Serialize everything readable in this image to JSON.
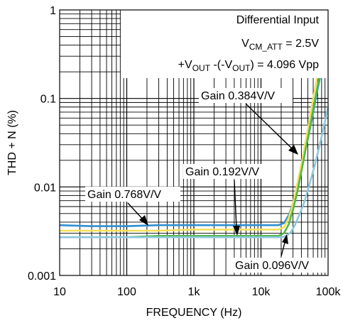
{
  "chart_data": {
    "type": "line",
    "xscale": "log",
    "yscale": "log",
    "xlim": [
      10,
      100000
    ],
    "ylim": [
      0.001,
      1
    ],
    "xlabel": "FREQUENCY (Hz)",
    "ylabel": "THD + N (%)",
    "x_ticks": [
      "10",
      "100",
      "1k",
      "10k",
      "100k"
    ],
    "y_ticks": [
      "0.001",
      "0.01",
      "0.1",
      "1"
    ],
    "grid": true,
    "series": [
      {
        "name": "Gain 0.768V/V",
        "color": "#2e8fd0",
        "x": [
          10,
          30,
          100,
          300,
          1000,
          3000,
          10000,
          18000,
          22000,
          26000,
          30000,
          35000,
          40000,
          50000,
          60000,
          70000,
          80000,
          100000
        ],
        "y": [
          0.0037,
          0.0036,
          0.0036,
          0.0037,
          0.0037,
          0.0037,
          0.0037,
          0.0037,
          0.0039,
          0.0048,
          0.0065,
          0.01,
          0.016,
          0.035,
          0.07,
          0.13,
          0.21,
          0.46
        ]
      },
      {
        "name": "Gain 0.384V/V",
        "color": "#f4e05a",
        "x": [
          10,
          30,
          100,
          300,
          1000,
          3000,
          10000,
          18000,
          22000,
          26000,
          30000,
          35000,
          40000,
          50000,
          60000,
          70000,
          80000,
          100000
        ],
        "y": [
          0.0032,
          0.0032,
          0.0032,
          0.0032,
          0.0033,
          0.0033,
          0.0033,
          0.0033,
          0.0035,
          0.0045,
          0.0065,
          0.011,
          0.018,
          0.045,
          0.1,
          0.19,
          0.32,
          0.75
        ]
      },
      {
        "name": "Gain 0.192V/V",
        "color": "#50b848",
        "x": [
          10,
          30,
          100,
          300,
          1000,
          3000,
          10000,
          18000,
          22000,
          26000,
          30000,
          35000,
          40000,
          50000,
          60000,
          70000,
          80000,
          100000
        ],
        "y": [
          0.0027,
          0.0027,
          0.0027,
          0.0028,
          0.0028,
          0.0028,
          0.0028,
          0.0028,
          0.003,
          0.0038,
          0.0055,
          0.009,
          0.015,
          0.036,
          0.075,
          0.14,
          0.24,
          0.55
        ]
      },
      {
        "name": "Gain 0.096V/V",
        "color": "#8ec8df",
        "x": [
          10,
          30,
          100,
          300,
          1000,
          3000,
          10000,
          20000,
          24000,
          28000,
          32000,
          38000,
          45000,
          55000,
          65000,
          75000,
          85000,
          100000
        ],
        "y": [
          0.0027,
          0.0027,
          0.0027,
          0.0027,
          0.0027,
          0.0027,
          0.0027,
          0.0027,
          0.0028,
          0.0031,
          0.0037,
          0.005,
          0.007,
          0.012,
          0.019,
          0.03,
          0.045,
          0.08
        ]
      }
    ],
    "annotations": {
      "line1": "Differential Input",
      "line2": {
        "prefix": "V",
        "sub": "CM_ATT",
        "suffix": " = 2.5V"
      },
      "line3": {
        "p1": "+V",
        "s1": "OUT",
        "p2": " -(-V",
        "s2": "OUT",
        "p3": ") = 4.096 Vpp"
      }
    },
    "labels": {
      "g384": "Gain 0.384V/V",
      "g192": "Gain 0.192V/V",
      "g768": "Gain 0.768V/V",
      "g096": "Gain 0.096V/V"
    }
  }
}
